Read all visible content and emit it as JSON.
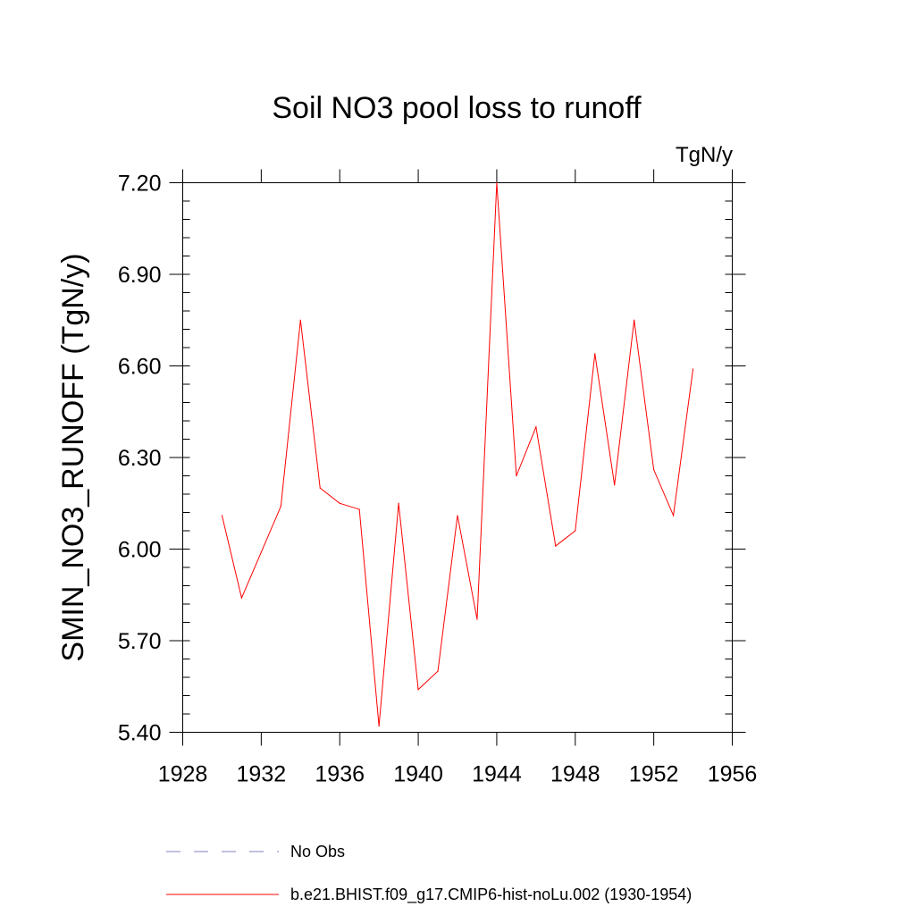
{
  "chart_data": {
    "type": "line",
    "title": "Soil NO3 pool loss to runoff",
    "units_label": "TgN/y",
    "ylabel": "SMIN_NO3_RUNOFF  (TgN/y)",
    "xlabel": "",
    "xlim": [
      1928,
      1956
    ],
    "ylim": [
      5.4,
      7.2
    ],
    "x_ticks": [
      "1928",
      "1932",
      "1936",
      "1940",
      "1944",
      "1948",
      "1952",
      "1956"
    ],
    "y_ticks": [
      "5.40",
      "5.70",
      "6.00",
      "6.30",
      "6.60",
      "6.90",
      "7.20"
    ],
    "x": [
      1930,
      1931,
      1932,
      1933,
      1934,
      1935,
      1936,
      1937,
      1938,
      1939,
      1940,
      1941,
      1942,
      1943,
      1944,
      1945,
      1946,
      1947,
      1948,
      1949,
      1950,
      1951,
      1952,
      1953,
      1954
    ],
    "series": [
      {
        "name": "b.e21.BHIST.f09_g17.CMIP6-hist-noLu.002 (1930-1954)",
        "color": "#ff0000",
        "values": [
          6.11,
          5.84,
          5.99,
          6.14,
          6.75,
          6.2,
          6.15,
          6.13,
          5.42,
          6.15,
          5.54,
          5.6,
          6.11,
          5.77,
          7.2,
          6.24,
          6.4,
          6.01,
          6.06,
          6.64,
          6.21,
          6.75,
          6.26,
          6.11,
          6.59
        ]
      }
    ],
    "legend": [
      {
        "label": "No Obs",
        "color": "#8080c0",
        "style": "dashed"
      },
      {
        "label": "b.e21.BHIST.f09_g17.CMIP6-hist-noLu.002 (1930-1954)",
        "color": "#ff0000",
        "style": "solid"
      }
    ],
    "legend_position": "bottom"
  }
}
